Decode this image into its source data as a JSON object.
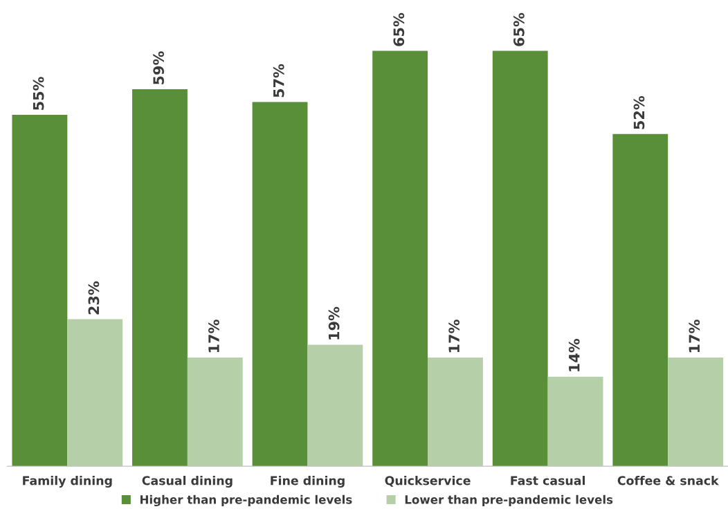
{
  "chart_data": {
    "type": "bar",
    "categories": [
      "Family dining",
      "Casual dining",
      "Fine dining",
      "Quickservice",
      "Fast casual",
      "Coffee & snack"
    ],
    "series": [
      {
        "name": "Higher than pre-pandemic levels",
        "color": "#5a8f3a",
        "values": [
          55,
          59,
          57,
          65,
          65,
          52
        ],
        "value_labels": [
          "55%",
          "59%",
          "57%",
          "65%",
          "65%",
          "52%"
        ]
      },
      {
        "name": "Lower than pre-pandemic levels",
        "color": "#b5d0a8",
        "values": [
          23,
          17,
          19,
          17,
          14,
          17
        ],
        "value_labels": [
          "23%",
          "17%",
          "19%",
          "17%",
          "14%",
          "17%"
        ]
      }
    ],
    "legend": "bottom",
    "grid": false
  }
}
